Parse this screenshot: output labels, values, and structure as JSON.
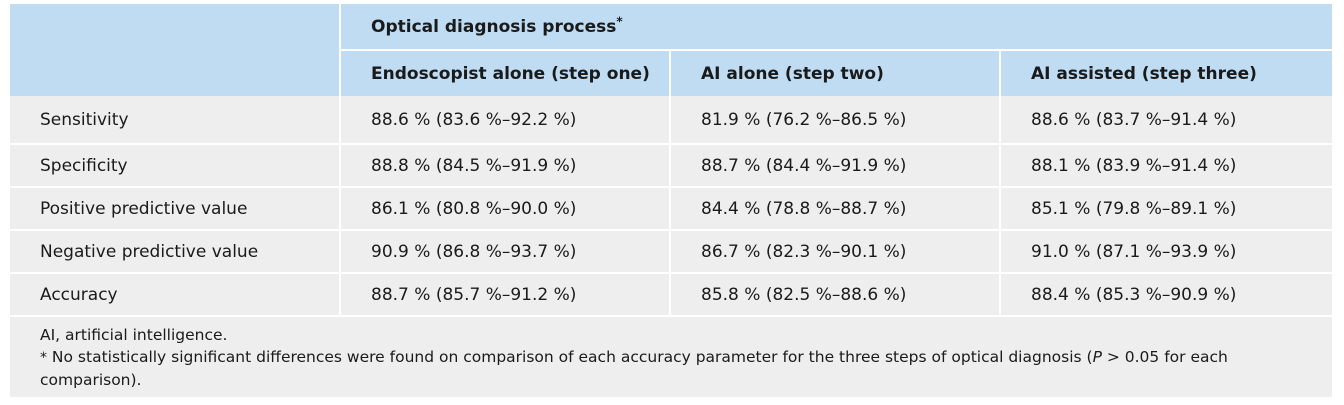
{
  "table": {
    "group_header": "Optical diagnosis process",
    "group_marker": "*",
    "columns": [
      "Endoscopist alone (step one)",
      "AI alone (step two)",
      "AI assisted (step three)"
    ],
    "rows": [
      {
        "label": "Sensitivity",
        "values": [
          "88.6 % (83.6 %–92.2 %)",
          "81.9 % (76.2 %–86.5 %)",
          "88.6 % (83.7 %–91.4 %)"
        ]
      },
      {
        "label": "Specificity",
        "values": [
          "88.8 % (84.5 %–91.9 %)",
          "88.7 % (84.4 %–91.9 %)",
          "88.1 % (83.9 %–91.4 %)"
        ]
      },
      {
        "label": "Positive predictive value",
        "values": [
          "86.1 % (80.8 %–90.0 %)",
          "84.4 % (78.8 %–88.7 %)",
          "85.1 % (79.8 %–89.1 %)"
        ]
      },
      {
        "label": "Negative predictive value",
        "values": [
          "90.9 % (86.8 %–93.7 %)",
          "86.7 % (82.3 %–90.1 %)",
          "91.0 % (87.1 %–93.9 %)"
        ]
      },
      {
        "label": "Accuracy",
        "values": [
          "88.7 % (85.7 %–91.2 %)",
          "85.8 % (82.5 %–88.6 %)",
          "88.4 % (85.3 %–90.9 %)"
        ]
      }
    ]
  },
  "footnotes": {
    "abbrev": "AI, artificial intelligence.",
    "star": "*",
    "note_pre": " No statistically significant differences were found on comparison of each accuracy parameter for the three steps of optical diagnosis (",
    "note_p": "P",
    "note_post": " > 0.05 for each comparison)."
  },
  "colors": {
    "header_bg": "#bfdcf3",
    "body_bg": "#eeeeee"
  }
}
